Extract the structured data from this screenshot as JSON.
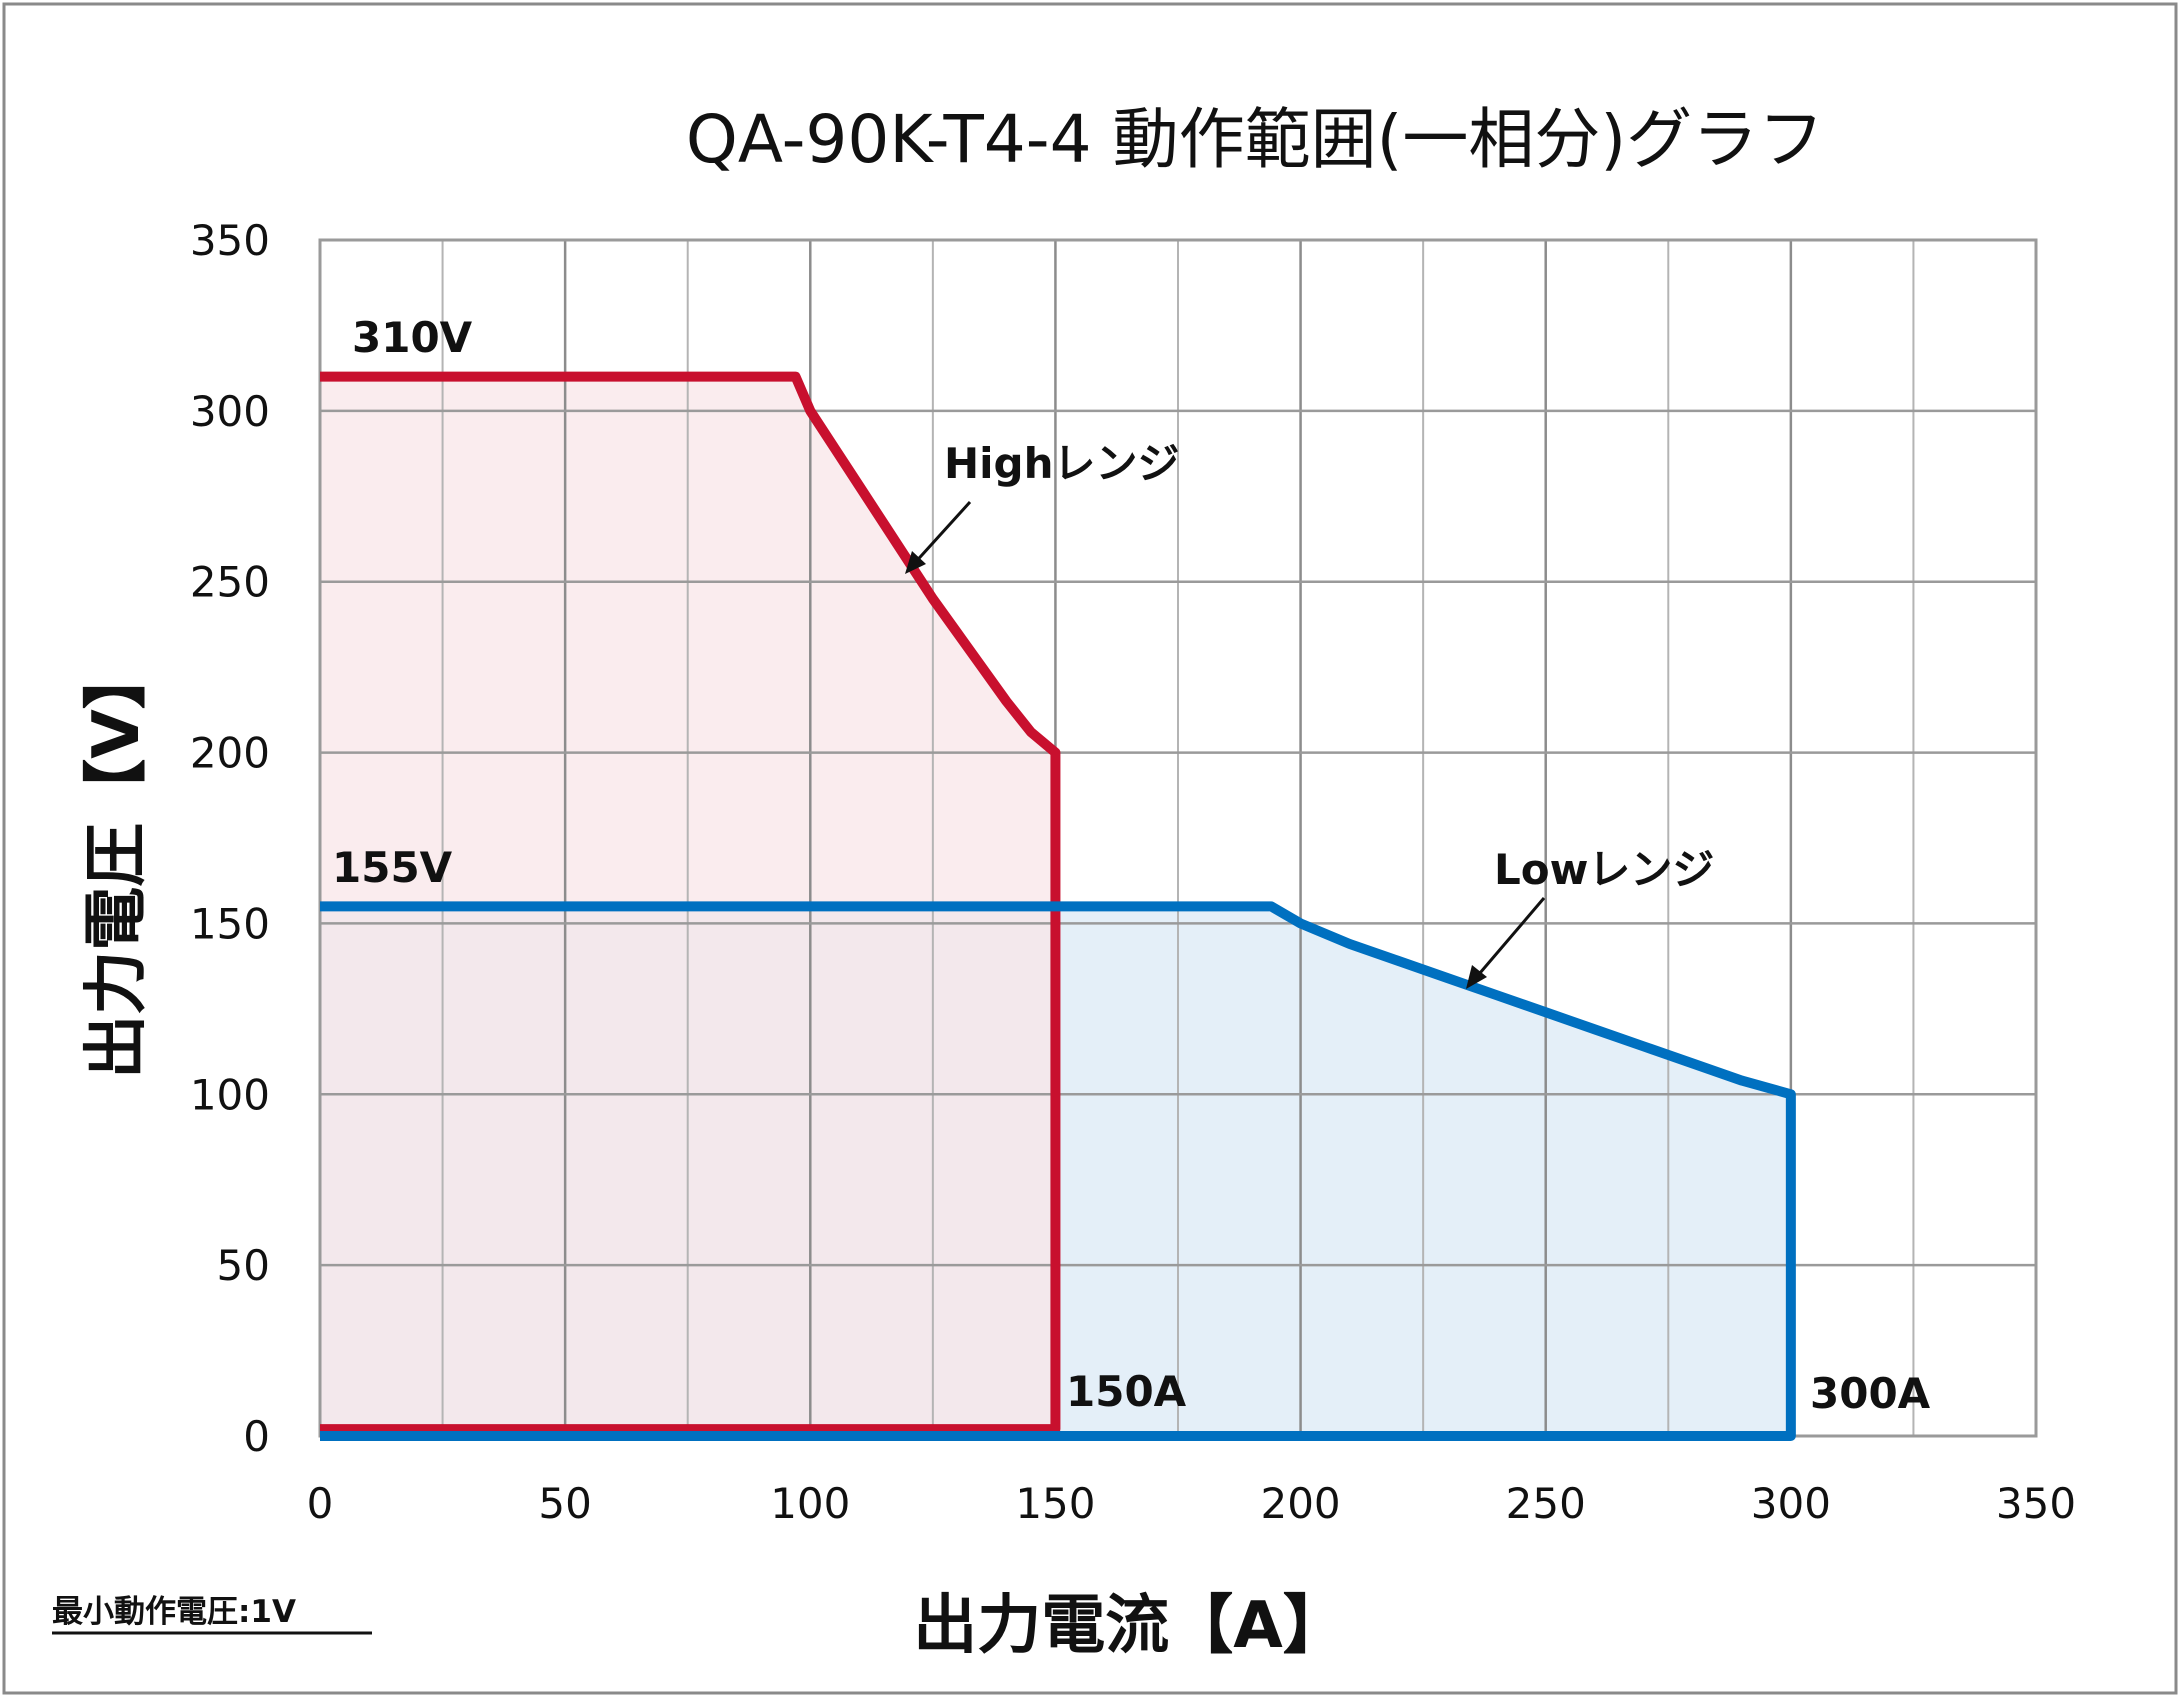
{
  "chart_data": {
    "type": "area",
    "title": "QA-90K-T4-4  動作範囲(一相分)グラフ",
    "xlabel": "出力電流【A】",
    "ylabel": "出力電圧【V】",
    "xlim": [
      0,
      350
    ],
    "ylim": [
      0,
      350
    ],
    "x_ticks": [
      "0",
      "50",
      "100",
      "150",
      "200",
      "250",
      "300",
      "350"
    ],
    "y_ticks": [
      "0",
      "50",
      "100",
      "150",
      "200",
      "250",
      "300",
      "350"
    ],
    "grid": true,
    "series": [
      {
        "range": "High",
        "color": "#C8102E",
        "fill": "#F8E6E8",
        "points": [
          [
            0,
            310
          ],
          [
            97,
            310
          ],
          [
            100,
            300
          ],
          [
            105,
            289
          ],
          [
            110,
            278
          ],
          [
            115,
            267
          ],
          [
            120,
            256
          ],
          [
            125,
            245
          ],
          [
            130,
            235
          ],
          [
            135,
            225
          ],
          [
            140,
            215
          ],
          [
            145,
            206
          ],
          [
            150,
            200
          ],
          [
            150,
            2
          ],
          [
            0,
            2
          ]
        ]
      },
      {
        "range": "Low",
        "color": "#0070C0",
        "fill": "#E4EFF8",
        "points": [
          [
            0,
            155
          ],
          [
            194,
            155
          ],
          [
            200,
            150
          ],
          [
            210,
            144
          ],
          [
            220,
            139
          ],
          [
            230,
            134
          ],
          [
            240,
            129
          ],
          [
            250,
            124
          ],
          [
            260,
            119
          ],
          [
            270,
            114
          ],
          [
            280,
            109
          ],
          [
            290,
            104
          ],
          [
            300,
            100
          ],
          [
            300,
            0
          ],
          [
            0,
            0
          ]
        ]
      }
    ],
    "annotations": {
      "high_label": "Highレンジ",
      "low_label": "Lowレンジ",
      "v310": "310V",
      "v155": "155V",
      "a150": "150A",
      "a300": "300A"
    },
    "note": "最小動作電圧:1V"
  }
}
